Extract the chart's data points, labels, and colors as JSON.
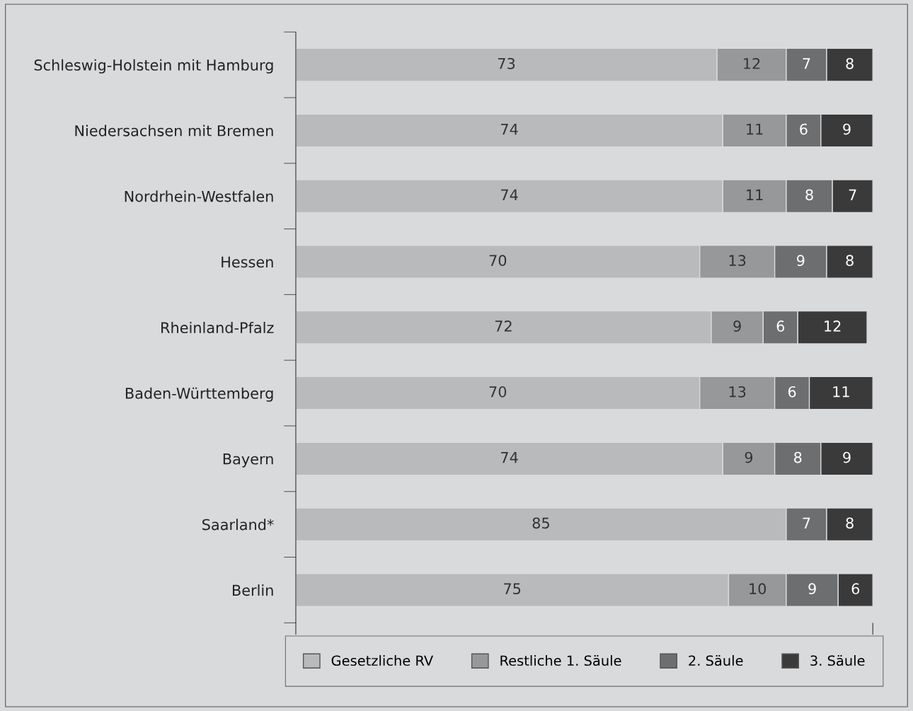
{
  "chart_data": {
    "type": "bar",
    "orientation": "horizontal",
    "stacked": true,
    "data_labels": true,
    "legend": "bottom",
    "grid": false,
    "tick_labels": "y",
    "categories": [
      "Schleswig-Holstein mit Hamburg",
      "Niedersachsen mit Bremen",
      "Nordrhein-Westfalen",
      "Hessen",
      "Rheinland-Pfalz",
      "Baden-Württemberg",
      "Bayern",
      "Saarland*",
      "Berlin"
    ],
    "xlim": [
      0,
      100
    ],
    "series": [
      {
        "name": "Gesetzliche RV",
        "color": "#b9babc",
        "values": [
          73,
          74,
          74,
          70,
          72,
          70,
          74,
          85,
          75
        ]
      },
      {
        "name": "Restliche 1. Säule",
        "color": "#97989a",
        "values": [
          12,
          11,
          11,
          13,
          9,
          13,
          9,
          null,
          10
        ]
      },
      {
        "name": "2. Säule",
        "color": "#6d6e70",
        "values": [
          7,
          6,
          8,
          9,
          6,
          6,
          8,
          7,
          9
        ]
      },
      {
        "name": "3. Säule",
        "color": "#3a3a3b",
        "values": [
          8,
          9,
          7,
          8,
          12,
          11,
          9,
          8,
          6
        ]
      }
    ]
  }
}
